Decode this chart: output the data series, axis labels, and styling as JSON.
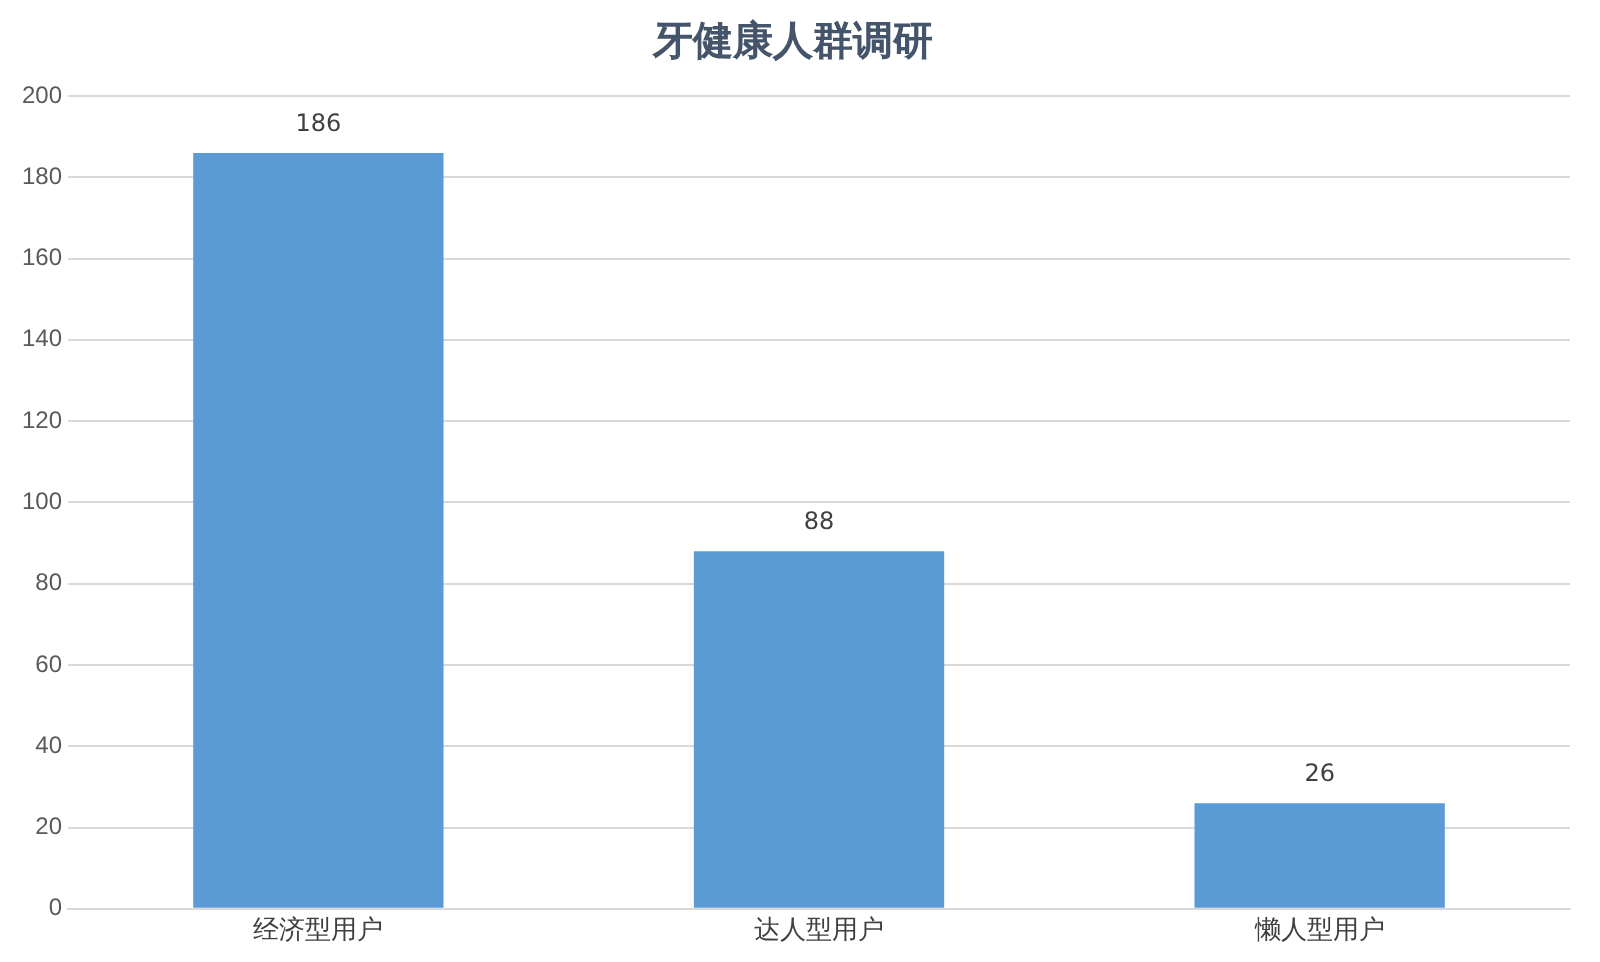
{
  "chart_data": {
    "type": "bar",
    "title": "牙健康人群调研",
    "categories": [
      "经济型用户",
      "达人型用户",
      "懒人型用户"
    ],
    "values": [
      186,
      88,
      26
    ],
    "color": "#5b9bd5",
    "ylim": [
      0,
      200
    ],
    "yticks": [
      0,
      20,
      40,
      60,
      80,
      100,
      120,
      140,
      160,
      180,
      200
    ],
    "grid": "y",
    "data_labels": true,
    "legend": false
  }
}
